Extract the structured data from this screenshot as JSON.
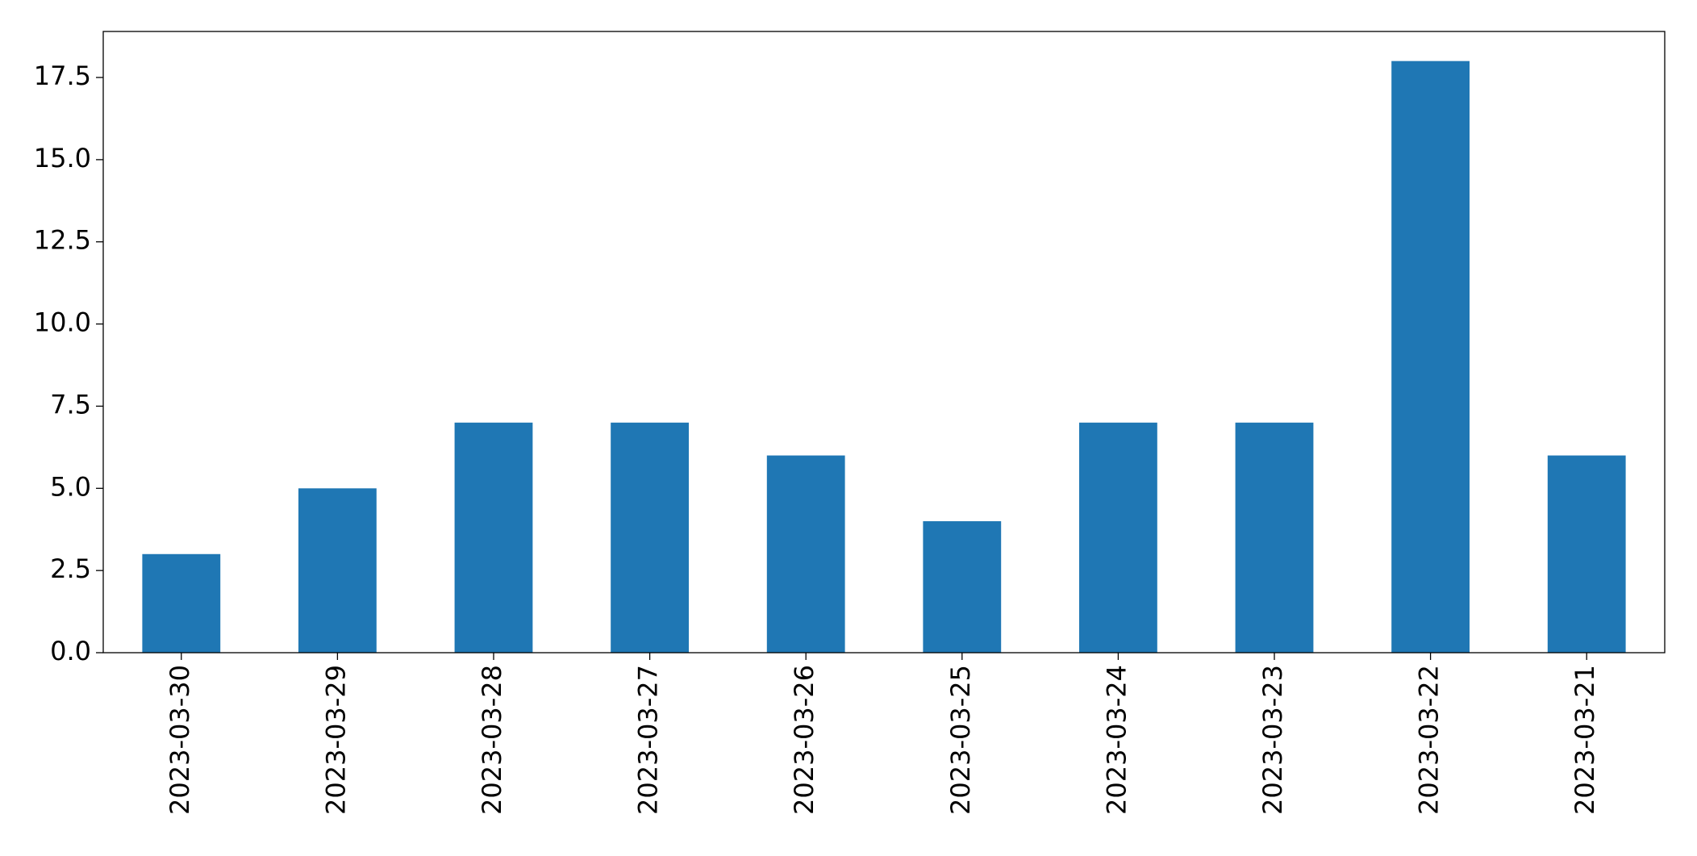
{
  "chart_data": {
    "type": "bar",
    "categories": [
      "2023-03-30",
      "2023-03-29",
      "2023-03-28",
      "2023-03-27",
      "2023-03-26",
      "2023-03-25",
      "2023-03-24",
      "2023-03-23",
      "2023-03-22",
      "2023-03-21"
    ],
    "values": [
      3,
      5,
      7,
      7,
      6,
      4,
      7,
      7,
      18,
      6
    ],
    "color": "#1f77b4",
    "ylim": [
      0,
      18.9
    ],
    "yticks": [
      {
        "value": 0,
        "label": "0.0"
      },
      2.5,
      {
        "value": 5,
        "label": "5.0"
      },
      7.5,
      {
        "value": 10,
        "label": "10.0"
      },
      12.5,
      {
        "value": 15,
        "label": "15.0"
      },
      17.5
    ],
    "grid": false
  }
}
